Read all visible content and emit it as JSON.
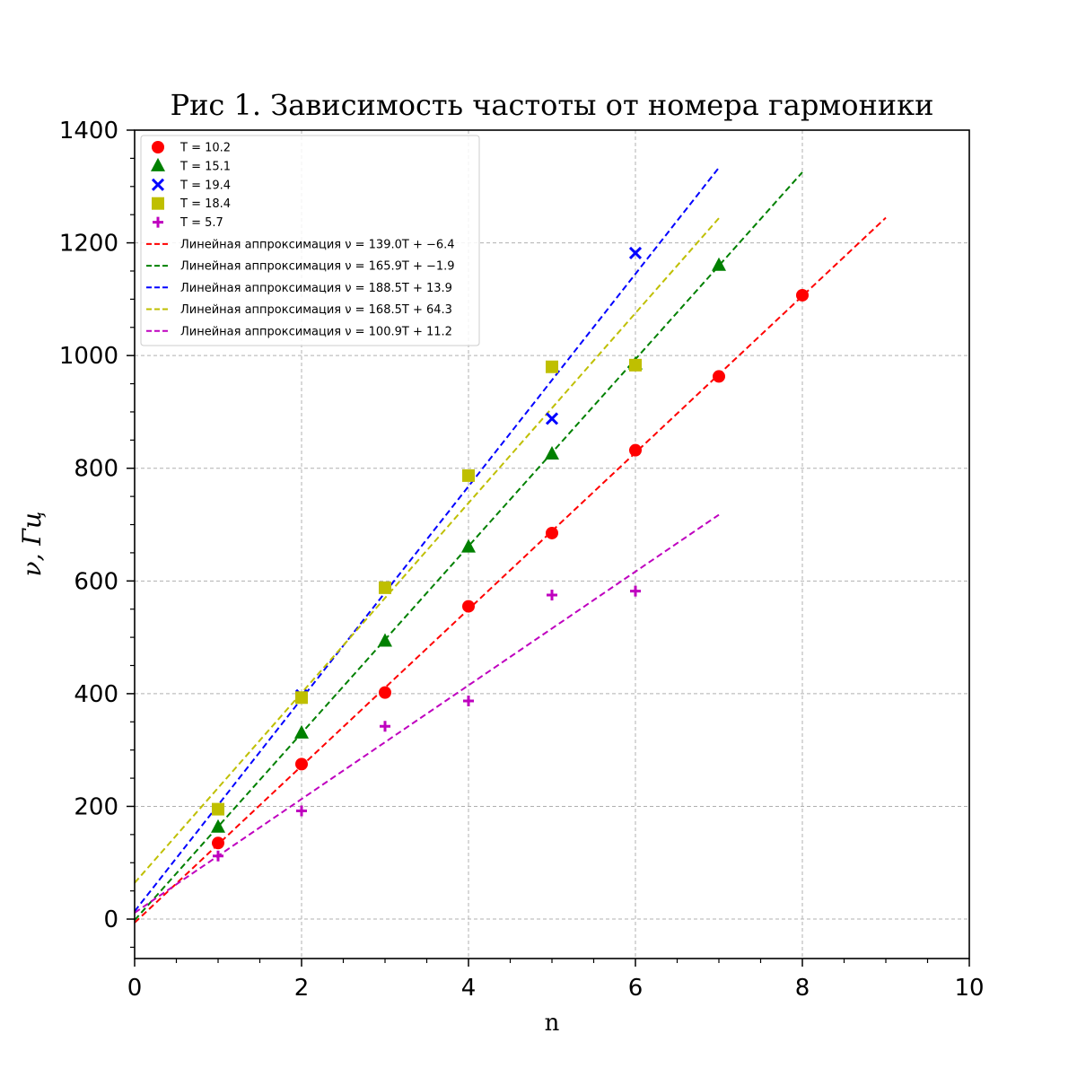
{
  "chart_data": {
    "type": "scatter",
    "title": "Рис 1. Зависимость частоты от номера гармоники",
    "xlabel": "n",
    "ylabel": "ν, Гц",
    "xlim": [
      0,
      10
    ],
    "ylim": [
      -70,
      1400
    ],
    "xticks": [
      0,
      2,
      4,
      6,
      8,
      10
    ],
    "yticks": [
      0,
      200,
      400,
      600,
      800,
      1000,
      1200,
      1400
    ],
    "grid": true,
    "legend_position": "upper-left",
    "series": [
      {
        "name": "T = 10.2",
        "color": "#ff0000",
        "marker": "circle",
        "x": [
          1,
          2,
          3,
          4,
          5,
          6,
          7,
          8
        ],
        "y": [
          135,
          275,
          402,
          555,
          685,
          832,
          963,
          1107
        ]
      },
      {
        "name": "T = 15.1",
        "color": "#008000",
        "marker": "triangle",
        "x": [
          1,
          2,
          3,
          4,
          5,
          6,
          7
        ],
        "y": [
          163,
          330,
          493,
          660,
          825,
          985,
          1160
        ]
      },
      {
        "name": "T = 19.4",
        "color": "#0000ff",
        "marker": "x",
        "x": [
          2,
          5,
          6
        ],
        "y": [
          397,
          888,
          1182
        ]
      },
      {
        "name": "T = 18.4",
        "color": "#bfbf00",
        "marker": "square",
        "x": [
          1,
          2,
          3,
          4,
          5,
          6
        ],
        "y": [
          195,
          393,
          588,
          787,
          980,
          983
        ]
      },
      {
        "name": "T = 5.7",
        "color": "#bf00bf",
        "marker": "plus",
        "x": [
          1,
          2,
          3,
          4,
          5,
          6
        ],
        "y": [
          112,
          192,
          342,
          387,
          575,
          582
        ]
      }
    ],
    "fits": [
      {
        "name": "Линейная аппроксимация ν = 139.0T + −6.4",
        "color": "#ff0000",
        "slope": 139.0,
        "intercept": -6.4,
        "x_range": [
          0,
          9
        ]
      },
      {
        "name": "Линейная аппроксимация ν = 165.9T + −1.9",
        "color": "#008000",
        "slope": 165.9,
        "intercept": -1.9,
        "x_range": [
          0,
          8
        ]
      },
      {
        "name": "Линейная аппроксимация ν = 188.5T + 13.9",
        "color": "#0000ff",
        "slope": 188.5,
        "intercept": 13.9,
        "x_range": [
          0,
          7
        ]
      },
      {
        "name": "Линейная аппроксимация ν = 168.5T + 64.3",
        "color": "#bfbf00",
        "slope": 168.5,
        "intercept": 64.3,
        "x_range": [
          0,
          7
        ]
      },
      {
        "name": "Линейная аппроксимация ν = 100.9T + 11.2",
        "color": "#bf00bf",
        "slope": 100.9,
        "intercept": 11.2,
        "x_range": [
          0,
          7
        ]
      }
    ]
  }
}
